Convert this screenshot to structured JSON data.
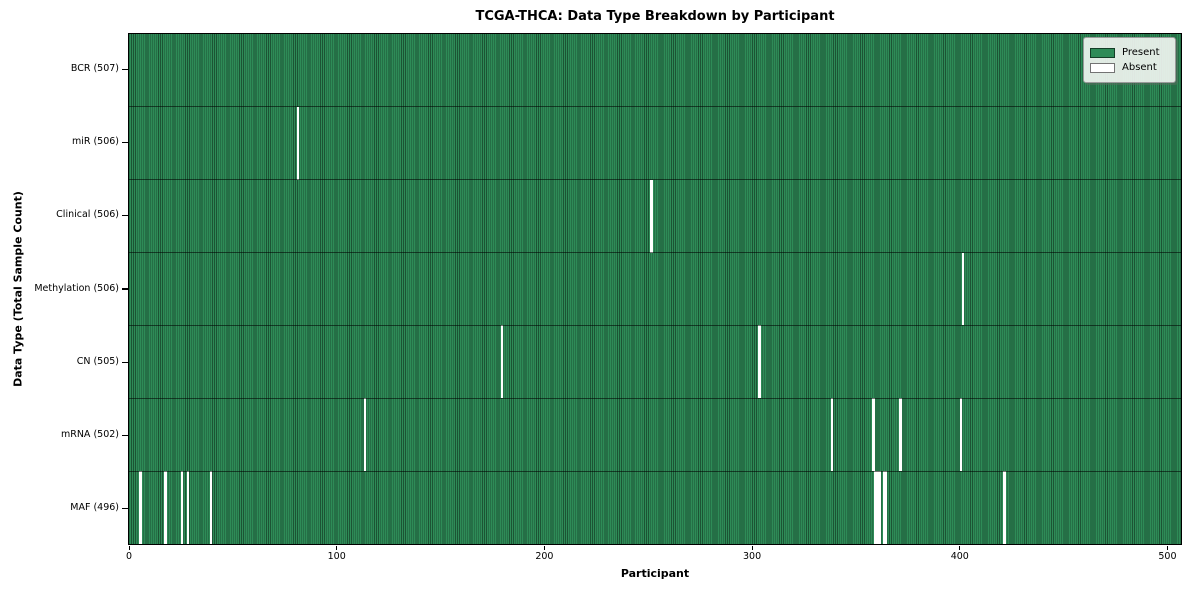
{
  "title": "TCGA-THCA: Data Type Breakdown by Participant",
  "xlabel": "Participant",
  "ylabel": "Data Type (Total Sample Count)",
  "legend": {
    "present_label": "Present",
    "absent_label": "Absent"
  },
  "colors": {
    "present": "#2e8b57",
    "absent": "#ffffff",
    "bar_edge": "rgba(0,0,0,0.40)",
    "row_separator": "rgba(0,0,0,0.55)",
    "spine": "#000000",
    "legend_bg": "#f0f4f0"
  },
  "chart_data": {
    "type": "heatmap",
    "title": "TCGA-THCA: Data Type Breakdown by Participant",
    "xlabel": "Participant",
    "ylabel": "Data Type (Total Sample Count)",
    "n_participants": 507,
    "x_ticks": [
      0,
      100,
      200,
      300,
      400,
      500
    ],
    "legend_position": "upper right",
    "grid": false,
    "legend": [
      {
        "label": "Present",
        "color": "#2e8b57"
      },
      {
        "label": "Absent",
        "color": "#ffffff"
      }
    ],
    "rows": [
      {
        "label": "BCR (507)",
        "data_type": "BCR",
        "total": 507,
        "absent_participants": []
      },
      {
        "label": "miR (506)",
        "data_type": "miR",
        "total": 506,
        "absent_participants": [
          81
        ]
      },
      {
        "label": "Clinical (506)",
        "data_type": "Clinical",
        "total": 506,
        "absent_participants": [
          251
        ]
      },
      {
        "label": "Methylation (506)",
        "data_type": "Methylation",
        "total": 506,
        "absent_participants": [
          401
        ]
      },
      {
        "label": "CN (505)",
        "data_type": "CN",
        "total": 505,
        "absent_participants": [
          179,
          303
        ]
      },
      {
        "label": "mRNA (502)",
        "data_type": "mRNA",
        "total": 502,
        "absent_participants": [
          113,
          338,
          358,
          371,
          400
        ]
      },
      {
        "label": "MAF (496)",
        "data_type": "MAF",
        "total": 496,
        "absent_participants": [
          5,
          17,
          25,
          28,
          39,
          359,
          360,
          361,
          363,
          364,
          421
        ]
      }
    ]
  }
}
